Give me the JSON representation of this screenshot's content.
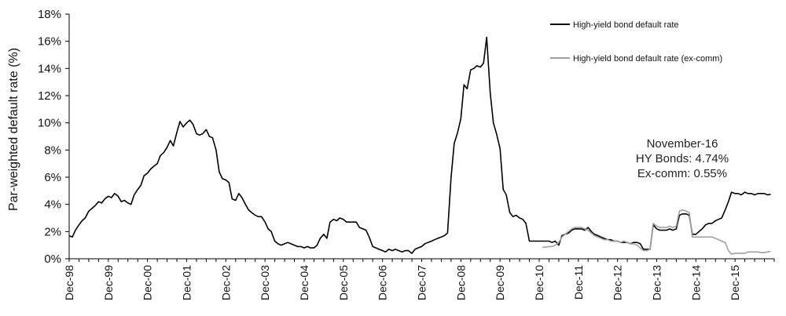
{
  "chart_data": {
    "type": "line",
    "title": "",
    "xlabel": "",
    "ylabel": "Par-weighted default rate (%)",
    "y_ticks": [
      "0%",
      "2%",
      "4%",
      "6%",
      "8%",
      "10%",
      "12%",
      "14%",
      "16%",
      "18%"
    ],
    "ylim": [
      0,
      18
    ],
    "xlim": [
      1998.92,
      2016.92
    ],
    "x_ticks": [
      {
        "label": "Dec-98",
        "x": 1998.92
      },
      {
        "label": "Dec-99",
        "x": 1999.92
      },
      {
        "label": "Dec-00",
        "x": 2000.92
      },
      {
        "label": "Dec-01",
        "x": 2001.92
      },
      {
        "label": "Dec-02",
        "x": 2002.92
      },
      {
        "label": "Dec-03",
        "x": 2003.92
      },
      {
        "label": "Dec-04",
        "x": 2004.92
      },
      {
        "label": "Dec-05",
        "x": 2005.92
      },
      {
        "label": "Dec-06",
        "x": 2006.92
      },
      {
        "label": "Dec-07",
        "x": 2007.92
      },
      {
        "label": "Dec-08",
        "x": 2008.92
      },
      {
        "label": "Dec-09",
        "x": 2009.92
      },
      {
        "label": "Dec-10",
        "x": 2010.92
      },
      {
        "label": "Dec-11",
        "x": 2011.92
      },
      {
        "label": "Dec-12",
        "x": 2012.92
      },
      {
        "label": "Dec-13",
        "x": 2013.92
      },
      {
        "label": "Dec-14",
        "x": 2014.92
      },
      {
        "label": "Dec-15",
        "x": 2015.92
      }
    ],
    "legend_position": "top-right",
    "grid": false,
    "series": [
      {
        "name": "High-yield bond default rate",
        "color": "#000000",
        "points": [
          [
            1998.92,
            1.7
          ],
          [
            1999.0,
            1.6
          ],
          [
            1999.08,
            2.1
          ],
          [
            1999.17,
            2.5
          ],
          [
            1999.25,
            2.8
          ],
          [
            1999.33,
            3.0
          ],
          [
            1999.42,
            3.5
          ],
          [
            1999.5,
            3.7
          ],
          [
            1999.58,
            3.9
          ],
          [
            1999.67,
            4.2
          ],
          [
            1999.75,
            4.1
          ],
          [
            1999.83,
            4.4
          ],
          [
            1999.92,
            4.6
          ],
          [
            2000.0,
            4.5
          ],
          [
            2000.08,
            4.8
          ],
          [
            2000.17,
            4.6
          ],
          [
            2000.25,
            4.2
          ],
          [
            2000.33,
            4.3
          ],
          [
            2000.42,
            4.1
          ],
          [
            2000.5,
            4.0
          ],
          [
            2000.58,
            4.7
          ],
          [
            2000.67,
            5.1
          ],
          [
            2000.75,
            5.4
          ],
          [
            2000.83,
            6.1
          ],
          [
            2000.92,
            6.3
          ],
          [
            2001.0,
            6.6
          ],
          [
            2001.08,
            6.8
          ],
          [
            2001.17,
            7.0
          ],
          [
            2001.25,
            7.6
          ],
          [
            2001.33,
            7.8
          ],
          [
            2001.42,
            8.2
          ],
          [
            2001.5,
            8.7
          ],
          [
            2001.58,
            8.3
          ],
          [
            2001.67,
            9.3
          ],
          [
            2001.75,
            10.1
          ],
          [
            2001.83,
            9.7
          ],
          [
            2001.92,
            10.0
          ],
          [
            2002.0,
            10.2
          ],
          [
            2002.08,
            9.9
          ],
          [
            2002.17,
            9.2
          ],
          [
            2002.25,
            9.1
          ],
          [
            2002.33,
            9.2
          ],
          [
            2002.42,
            9.5
          ],
          [
            2002.5,
            9.0
          ],
          [
            2002.58,
            8.9
          ],
          [
            2002.67,
            8.0
          ],
          [
            2002.75,
            6.4
          ],
          [
            2002.83,
            5.9
          ],
          [
            2002.92,
            5.8
          ],
          [
            2003.0,
            5.6
          ],
          [
            2003.08,
            4.4
          ],
          [
            2003.17,
            4.3
          ],
          [
            2003.25,
            4.8
          ],
          [
            2003.33,
            4.5
          ],
          [
            2003.42,
            4.0
          ],
          [
            2003.5,
            3.6
          ],
          [
            2003.58,
            3.4
          ],
          [
            2003.67,
            3.2
          ],
          [
            2003.75,
            3.1
          ],
          [
            2003.83,
            3.1
          ],
          [
            2003.92,
            2.7
          ],
          [
            2004.0,
            2.2
          ],
          [
            2004.08,
            2.0
          ],
          [
            2004.17,
            1.3
          ],
          [
            2004.25,
            1.1
          ],
          [
            2004.33,
            1.0
          ],
          [
            2004.42,
            1.1
          ],
          [
            2004.5,
            1.2
          ],
          [
            2004.58,
            1.1
          ],
          [
            2004.67,
            1.0
          ],
          [
            2004.75,
            0.9
          ],
          [
            2004.83,
            0.9
          ],
          [
            2004.92,
            0.8
          ],
          [
            2005.0,
            0.9
          ],
          [
            2005.08,
            0.8
          ],
          [
            2005.17,
            0.8
          ],
          [
            2005.25,
            1.0
          ],
          [
            2005.33,
            1.5
          ],
          [
            2005.42,
            1.8
          ],
          [
            2005.5,
            1.5
          ],
          [
            2005.58,
            2.7
          ],
          [
            2005.67,
            2.9
          ],
          [
            2005.75,
            2.8
          ],
          [
            2005.83,
            3.0
          ],
          [
            2005.92,
            2.9
          ],
          [
            2006.0,
            2.7
          ],
          [
            2006.08,
            2.7
          ],
          [
            2006.17,
            2.7
          ],
          [
            2006.25,
            2.7
          ],
          [
            2006.33,
            2.3
          ],
          [
            2006.42,
            2.2
          ],
          [
            2006.5,
            2.1
          ],
          [
            2006.58,
            1.6
          ],
          [
            2006.67,
            0.9
          ],
          [
            2006.75,
            0.8
          ],
          [
            2006.83,
            0.7
          ],
          [
            2006.92,
            0.6
          ],
          [
            2007.0,
            0.5
          ],
          [
            2007.08,
            0.7
          ],
          [
            2007.17,
            0.6
          ],
          [
            2007.25,
            0.7
          ],
          [
            2007.33,
            0.6
          ],
          [
            2007.42,
            0.5
          ],
          [
            2007.5,
            0.6
          ],
          [
            2007.58,
            0.6
          ],
          [
            2007.67,
            0.4
          ],
          [
            2007.75,
            0.7
          ],
          [
            2007.83,
            0.8
          ],
          [
            2007.92,
            0.9
          ],
          [
            2008.0,
            1.1
          ],
          [
            2008.08,
            1.2
          ],
          [
            2008.17,
            1.3
          ],
          [
            2008.25,
            1.4
          ],
          [
            2008.33,
            1.5
          ],
          [
            2008.42,
            1.6
          ],
          [
            2008.5,
            1.7
          ],
          [
            2008.58,
            1.9
          ],
          [
            2008.67,
            6.0
          ],
          [
            2008.75,
            8.5
          ],
          [
            2008.83,
            9.2
          ],
          [
            2008.92,
            10.3
          ],
          [
            2009.0,
            12.8
          ],
          [
            2009.08,
            12.5
          ],
          [
            2009.17,
            13.9
          ],
          [
            2009.25,
            14.0
          ],
          [
            2009.33,
            14.2
          ],
          [
            2009.42,
            14.1
          ],
          [
            2009.5,
            14.4
          ],
          [
            2009.58,
            16.3
          ],
          [
            2009.67,
            12.2
          ],
          [
            2009.75,
            10.0
          ],
          [
            2009.83,
            9.2
          ],
          [
            2009.92,
            8.1
          ],
          [
            2010.0,
            5.1
          ],
          [
            2010.08,
            4.7
          ],
          [
            2010.17,
            3.4
          ],
          [
            2010.25,
            3.1
          ],
          [
            2010.33,
            3.2
          ],
          [
            2010.42,
            3.0
          ],
          [
            2010.5,
            2.9
          ],
          [
            2010.58,
            2.6
          ],
          [
            2010.67,
            1.3
          ],
          [
            2010.75,
            1.3
          ],
          [
            2010.83,
            1.3
          ],
          [
            2010.92,
            1.3
          ],
          [
            2011.0,
            1.3
          ],
          [
            2011.08,
            1.3
          ],
          [
            2011.17,
            1.3
          ],
          [
            2011.25,
            1.2
          ],
          [
            2011.33,
            1.3
          ],
          [
            2011.42,
            1.0
          ],
          [
            2011.5,
            1.7
          ],
          [
            2011.58,
            1.8
          ],
          [
            2011.67,
            1.9
          ],
          [
            2011.75,
            2.1
          ],
          [
            2011.83,
            2.2
          ],
          [
            2011.92,
            2.2
          ],
          [
            2012.0,
            2.2
          ],
          [
            2012.08,
            2.1
          ],
          [
            2012.17,
            2.3
          ],
          [
            2012.25,
            2.0
          ],
          [
            2012.33,
            1.8
          ],
          [
            2012.42,
            1.7
          ],
          [
            2012.5,
            1.6
          ],
          [
            2012.58,
            1.5
          ],
          [
            2012.67,
            1.4
          ],
          [
            2012.75,
            1.4
          ],
          [
            2012.83,
            1.3
          ],
          [
            2012.92,
            1.3
          ],
          [
            2013.0,
            1.2
          ],
          [
            2013.08,
            1.2
          ],
          [
            2013.17,
            1.2
          ],
          [
            2013.25,
            1.1
          ],
          [
            2013.33,
            1.2
          ],
          [
            2013.42,
            1.2
          ],
          [
            2013.5,
            1.1
          ],
          [
            2013.58,
            0.7
          ],
          [
            2013.67,
            0.7
          ],
          [
            2013.75,
            0.7
          ],
          [
            2013.83,
            2.5
          ],
          [
            2013.92,
            2.2
          ],
          [
            2014.0,
            2.1
          ],
          [
            2014.08,
            2.1
          ],
          [
            2014.17,
            2.1
          ],
          [
            2014.25,
            2.2
          ],
          [
            2014.33,
            2.1
          ],
          [
            2014.42,
            2.2
          ],
          [
            2014.5,
            3.2
          ],
          [
            2014.58,
            3.3
          ],
          [
            2014.67,
            3.3
          ],
          [
            2014.75,
            3.2
          ],
          [
            2014.83,
            1.8
          ],
          [
            2014.92,
            1.8
          ],
          [
            2015.0,
            2.0
          ],
          [
            2015.08,
            2.2
          ],
          [
            2015.17,
            2.5
          ],
          [
            2015.25,
            2.6
          ],
          [
            2015.33,
            2.6
          ],
          [
            2015.42,
            2.8
          ],
          [
            2015.5,
            2.9
          ],
          [
            2015.58,
            3.0
          ],
          [
            2015.67,
            3.6
          ],
          [
            2015.75,
            4.2
          ],
          [
            2015.83,
            4.9
          ],
          [
            2015.92,
            4.8
          ],
          [
            2016.0,
            4.8
          ],
          [
            2016.08,
            4.7
          ],
          [
            2016.17,
            4.9
          ],
          [
            2016.25,
            4.8
          ],
          [
            2016.33,
            4.8
          ],
          [
            2016.42,
            4.7
          ],
          [
            2016.5,
            4.8
          ],
          [
            2016.58,
            4.8
          ],
          [
            2016.67,
            4.8
          ],
          [
            2016.75,
            4.7
          ],
          [
            2016.83,
            4.74
          ]
        ]
      },
      {
        "name": "High-yield bond default rate (ex-comm)",
        "color": "#a0a0a0",
        "points": [
          [
            2011.0,
            0.85
          ],
          [
            2011.08,
            0.85
          ],
          [
            2011.17,
            0.9
          ],
          [
            2011.25,
            0.9
          ],
          [
            2011.33,
            1.0
          ],
          [
            2011.42,
            1.2
          ],
          [
            2011.5,
            1.6
          ],
          [
            2011.58,
            1.8
          ],
          [
            2011.67,
            2.0
          ],
          [
            2011.75,
            2.2
          ],
          [
            2011.83,
            2.3
          ],
          [
            2011.92,
            2.3
          ],
          [
            2012.0,
            2.3
          ],
          [
            2012.08,
            2.2
          ],
          [
            2012.17,
            2.1
          ],
          [
            2012.25,
            1.9
          ],
          [
            2012.33,
            1.7
          ],
          [
            2012.42,
            1.6
          ],
          [
            2012.5,
            1.5
          ],
          [
            2012.58,
            1.4
          ],
          [
            2012.67,
            1.4
          ],
          [
            2012.75,
            1.3
          ],
          [
            2012.83,
            1.3
          ],
          [
            2012.92,
            1.3
          ],
          [
            2013.0,
            1.2
          ],
          [
            2013.08,
            1.3
          ],
          [
            2013.17,
            1.2
          ],
          [
            2013.25,
            1.1
          ],
          [
            2013.33,
            1.1
          ],
          [
            2013.42,
            1.0
          ],
          [
            2013.5,
            0.8
          ],
          [
            2013.58,
            0.6
          ],
          [
            2013.67,
            0.6
          ],
          [
            2013.75,
            0.7
          ],
          [
            2013.83,
            2.6
          ],
          [
            2013.92,
            2.4
          ],
          [
            2014.0,
            2.3
          ],
          [
            2014.08,
            2.3
          ],
          [
            2014.17,
            2.3
          ],
          [
            2014.25,
            2.4
          ],
          [
            2014.33,
            2.3
          ],
          [
            2014.42,
            2.4
          ],
          [
            2014.5,
            3.5
          ],
          [
            2014.58,
            3.6
          ],
          [
            2014.67,
            3.5
          ],
          [
            2014.75,
            3.4
          ],
          [
            2014.83,
            1.6
          ],
          [
            2014.92,
            1.6
          ],
          [
            2015.0,
            1.6
          ],
          [
            2015.08,
            1.6
          ],
          [
            2015.17,
            1.6
          ],
          [
            2015.25,
            1.6
          ],
          [
            2015.33,
            1.6
          ],
          [
            2015.42,
            1.5
          ],
          [
            2015.5,
            1.4
          ],
          [
            2015.58,
            1.3
          ],
          [
            2015.67,
            1.2
          ],
          [
            2015.75,
            0.6
          ],
          [
            2015.83,
            0.35
          ],
          [
            2015.92,
            0.4
          ],
          [
            2016.0,
            0.4
          ],
          [
            2016.08,
            0.4
          ],
          [
            2016.17,
            0.4
          ],
          [
            2016.25,
            0.5
          ],
          [
            2016.33,
            0.5
          ],
          [
            2016.42,
            0.5
          ],
          [
            2016.5,
            0.5
          ],
          [
            2016.58,
            0.45
          ],
          [
            2016.67,
            0.45
          ],
          [
            2016.75,
            0.5
          ],
          [
            2016.83,
            0.55
          ]
        ]
      }
    ],
    "annotations": {
      "line1": "November-16",
      "line2": "HY Bonds: 4.74%",
      "line3": "Ex-comm: 0.55%"
    }
  }
}
